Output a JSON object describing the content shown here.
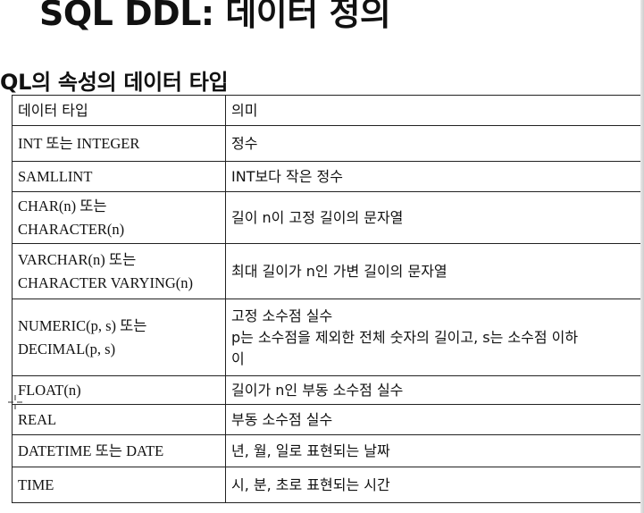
{
  "page": {
    "title": "SQL DDL: 데이터 정의",
    "section_title": "QL의 속성의 데이터 타입"
  },
  "table": {
    "header": {
      "type": "데이터 타입",
      "meaning": "의미"
    },
    "rows": [
      {
        "type_lines": [
          "INT 또는 INTEGER"
        ],
        "meaning_lines": [
          "정수"
        ]
      },
      {
        "type_lines": [
          "SAMLLINT"
        ],
        "meaning_lines": [
          "INT보다 작은 정수"
        ]
      },
      {
        "type_lines": [
          "CHAR(n) 또는",
          "CHARACTER(n)"
        ],
        "meaning_lines": [
          "길이 n이 고정 길이의 문자열"
        ]
      },
      {
        "type_lines": [
          "VARCHAR(n) 또는",
          "CHARACTER VARYING(n)"
        ],
        "meaning_lines": [
          "최대 길이가 n인 가변 길이의 문자열"
        ]
      },
      {
        "type_lines": [
          "NUMERIC(p, s) 또는",
          "DECIMAL(p, s)"
        ],
        "meaning_lines": [
          "고정 소수점 실수",
          "p는 소수점을 제외한 전체 숫자의 길이고, s는 소수점 이하",
          "이"
        ]
      },
      {
        "type_lines": [
          "FLOAT(n)"
        ],
        "meaning_lines": [
          "길이가 n인 부동 소수점 실수"
        ]
      },
      {
        "type_lines": [
          "REAL"
        ],
        "meaning_lines": [
          "부동 소수점 실수"
        ]
      },
      {
        "type_lines": [
          "DATETIME 또는 DATE"
        ],
        "meaning_lines": [
          "년, 월, 일로 표현되는 날짜"
        ]
      },
      {
        "type_lines": [
          "TIME"
        ],
        "meaning_lines": [
          "시, 분, 초로 표현되는 시간"
        ]
      }
    ]
  },
  "icons": {
    "cursor": "crosshair-cursor-icon"
  },
  "colors": {
    "text": "#111111",
    "border": "#222222",
    "background": "#ffffff"
  }
}
